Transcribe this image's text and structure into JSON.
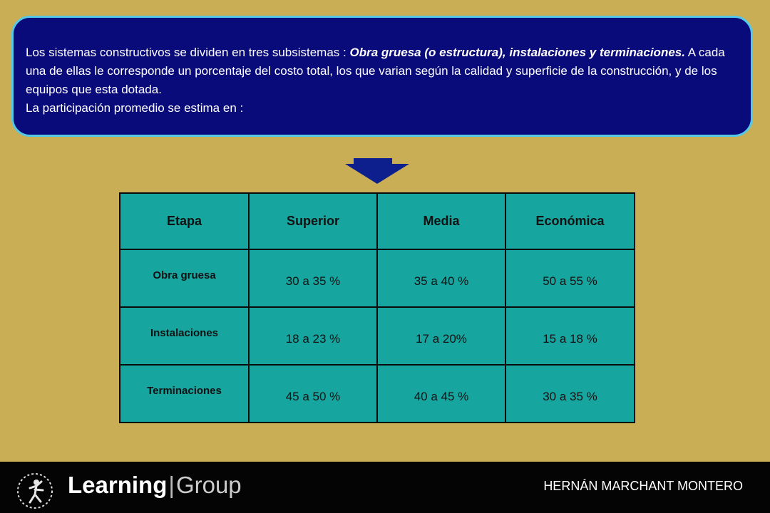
{
  "intro": {
    "text_1": "Los sistemas constructivos se dividen en tres subsistemas : ",
    "emphasis": "Obra gruesa (o estructura), instalaciones y terminaciones.",
    "text_2": " A cada una de ellas le corresponde un porcentaje del costo total, los que varian según la calidad y superficie de la construcción, y de los equipos que esta dotada.",
    "line_2": "La participación promedio se estima en :"
  },
  "arrow_icon": "down-arrow-icon",
  "table": {
    "headers": [
      "Etapa",
      "Superior",
      "Media",
      "Económica"
    ],
    "rows": [
      {
        "stage": "Obra gruesa",
        "values": [
          "30 a 35 %",
          "35 a 40 %",
          "50 a 55 %"
        ]
      },
      {
        "stage": "Instalaciones",
        "values": [
          "18 a 23 %",
          "17 a 20%",
          "15 a 18 %"
        ]
      },
      {
        "stage": "Terminaciones",
        "values": [
          "45 a 50 %",
          "40 a 45 %",
          "30 a 35 %"
        ]
      }
    ]
  },
  "footer": {
    "brand_bold": "Learning",
    "brand_sep": "|",
    "brand_light": "Group",
    "author": "HERNÁN MARCHANT MONTERO"
  },
  "colors": {
    "background": "#c9ae55",
    "intro_box": "#0a0b7a",
    "intro_border": "#55c8e8",
    "table_fill": "#17a5a0",
    "arrow": "#0d1f8c",
    "footer": "#040404"
  }
}
